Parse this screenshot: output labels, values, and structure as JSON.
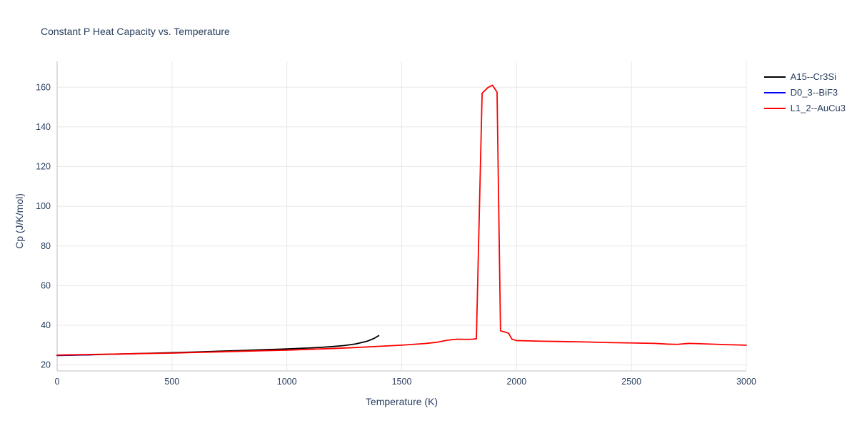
{
  "chart_data": {
    "type": "line",
    "title": "Constant P Heat Capacity vs. Temperature",
    "xlabel": "Temperature (K)",
    "ylabel": "Cp (J/K/mol)",
    "xlim": [
      0,
      3000
    ],
    "ylim": [
      17,
      168
    ],
    "x_ticks": [
      0,
      500,
      1000,
      1500,
      2000,
      2500,
      3000
    ],
    "y_ticks": [
      20,
      40,
      60,
      80,
      100,
      120,
      140,
      160
    ],
    "grid": true,
    "legend_position": "top-right-outside",
    "colors": {
      "grid": "#e8e8e8",
      "axis_line": "#bcbcbc",
      "text": "#2a3f5f",
      "background": "#ffffff"
    },
    "series": [
      {
        "name": "A15--Cr3Si",
        "color": "#000000",
        "points": [
          [
            0,
            24.8
          ],
          [
            100,
            25.0
          ],
          [
            200,
            25.3
          ],
          [
            300,
            25.6
          ],
          [
            400,
            25.9
          ],
          [
            500,
            26.2
          ],
          [
            600,
            26.5
          ],
          [
            700,
            26.9
          ],
          [
            800,
            27.3
          ],
          [
            900,
            27.7
          ],
          [
            1000,
            28.1
          ],
          [
            1100,
            28.6
          ],
          [
            1150,
            28.9
          ],
          [
            1200,
            29.3
          ],
          [
            1250,
            29.8
          ],
          [
            1300,
            30.6
          ],
          [
            1350,
            32.0
          ],
          [
            1380,
            33.4
          ],
          [
            1400,
            34.8
          ]
        ]
      },
      {
        "name": "D0_3--BiF3",
        "color": "#0000ff",
        "points": [
          [
            0,
            24.9
          ],
          [
            60,
            25.0
          ],
          [
            120,
            25.1
          ],
          [
            150,
            25.15
          ]
        ]
      },
      {
        "name": "L1_2--AuCu3",
        "color": "#ff0000",
        "points": [
          [
            0,
            25.0
          ],
          [
            100,
            25.2
          ],
          [
            200,
            25.4
          ],
          [
            300,
            25.6
          ],
          [
            400,
            25.8
          ],
          [
            500,
            26.0
          ],
          [
            600,
            26.3
          ],
          [
            700,
            26.6
          ],
          [
            800,
            26.9
          ],
          [
            900,
            27.2
          ],
          [
            1000,
            27.5
          ],
          [
            1100,
            27.9
          ],
          [
            1200,
            28.3
          ],
          [
            1300,
            28.8
          ],
          [
            1400,
            29.4
          ],
          [
            1500,
            30.0
          ],
          [
            1600,
            30.8
          ],
          [
            1650,
            31.4
          ],
          [
            1700,
            32.5
          ],
          [
            1740,
            33.0
          ],
          [
            1780,
            32.9
          ],
          [
            1810,
            33.0
          ],
          [
            1825,
            33.2
          ],
          [
            1850,
            157.0
          ],
          [
            1875,
            159.8
          ],
          [
            1895,
            161.0
          ],
          [
            1915,
            157.5
          ],
          [
            1930,
            37.2
          ],
          [
            1950,
            36.6
          ],
          [
            1965,
            36.0
          ],
          [
            1980,
            33.0
          ],
          [
            2000,
            32.3
          ],
          [
            2100,
            32.0
          ],
          [
            2200,
            31.8
          ],
          [
            2300,
            31.6
          ],
          [
            2400,
            31.3
          ],
          [
            2500,
            31.1
          ],
          [
            2600,
            30.9
          ],
          [
            2660,
            30.5
          ],
          [
            2700,
            30.4
          ],
          [
            2750,
            30.9
          ],
          [
            2800,
            30.7
          ],
          [
            2900,
            30.3
          ],
          [
            3000,
            30.0
          ]
        ]
      }
    ]
  }
}
